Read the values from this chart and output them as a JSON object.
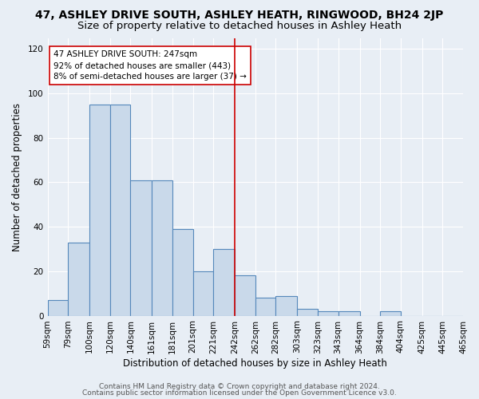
{
  "title1": "47, ASHLEY DRIVE SOUTH, ASHLEY HEATH, RINGWOOD, BH24 2JP",
  "title2": "Size of property relative to detached houses in Ashley Heath",
  "xlabel": "Distribution of detached houses by size in Ashley Heath",
  "ylabel": "Number of detached properties",
  "bin_edges": [
    59,
    79,
    100,
    120,
    140,
    161,
    181,
    201,
    221,
    242,
    262,
    282,
    303,
    323,
    343,
    364,
    384,
    404,
    425,
    445,
    465
  ],
  "bar_heights": [
    7,
    33,
    95,
    95,
    61,
    61,
    39,
    20,
    30,
    18,
    8,
    9,
    3,
    2,
    2,
    0,
    2,
    0,
    0,
    0
  ],
  "bar_color": "#c9d9ea",
  "bar_edgecolor": "#5588bb",
  "bar_linewidth": 0.8,
  "vline_x": 242,
  "vline_color": "#cc0000",
  "background_color": "#e8eef5",
  "grid_color": "#ffffff",
  "annotation_line1": "47 ASHLEY DRIVE SOUTH: 247sqm",
  "annotation_line2": "92% of detached houses are smaller (443)",
  "annotation_line3": "8% of semi-detached houses are larger (37) →",
  "annotation_bbox_color": "white",
  "annotation_bbox_edgecolor": "#cc0000",
  "ylim": [
    0,
    125
  ],
  "yticks": [
    0,
    20,
    40,
    60,
    80,
    100,
    120
  ],
  "footer1": "Contains HM Land Registry data © Crown copyright and database right 2024.",
  "footer2": "Contains public sector information licensed under the Open Government Licence v3.0.",
  "title1_fontsize": 10,
  "title2_fontsize": 9.5,
  "xlabel_fontsize": 8.5,
  "ylabel_fontsize": 8.5,
  "tick_fontsize": 7.5,
  "annotation_fontsize": 7.5,
  "footer_fontsize": 6.5
}
